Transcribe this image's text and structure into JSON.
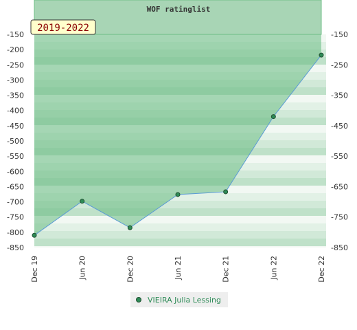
{
  "chart_data": {
    "type": "line",
    "title": "WOF ratinglist",
    "period_badge": "2019-2022",
    "x_ticks": [
      "Dec 19",
      "Jun 20",
      "Dec 20",
      "Jun 21",
      "Dec 21",
      "Jun 22",
      "Dec 22"
    ],
    "y_ticks": [
      "-150",
      "-200",
      "-250",
      "-300",
      "-350",
      "-400",
      "-450",
      "-500",
      "-550",
      "-600",
      "-650",
      "-700",
      "-750",
      "-800",
      "-850"
    ],
    "y_ticks_right": [
      "-150",
      "-250",
      "-350",
      "-450",
      "-550",
      "-650",
      "-750",
      "-850"
    ],
    "ylim": [
      -850,
      -150
    ],
    "grid": true,
    "legend_position": "bottom-center",
    "series": [
      {
        "name": "VIEIRA Julia Lessing",
        "color": "#2e8b57",
        "line_color": "#5b9bd5",
        "points": [
          {
            "x": "Dec 19",
            "y": -810
          },
          {
            "x": "Jun 20",
            "y": -698
          },
          {
            "x": "Dec 20",
            "y": -785
          },
          {
            "x": "Jun 21",
            "y": -676
          },
          {
            "x": "Dec 21",
            "y": -667
          },
          {
            "x": "Jun 22",
            "y": -420
          },
          {
            "x": "Dec 22",
            "y": -218
          }
        ]
      }
    ]
  }
}
